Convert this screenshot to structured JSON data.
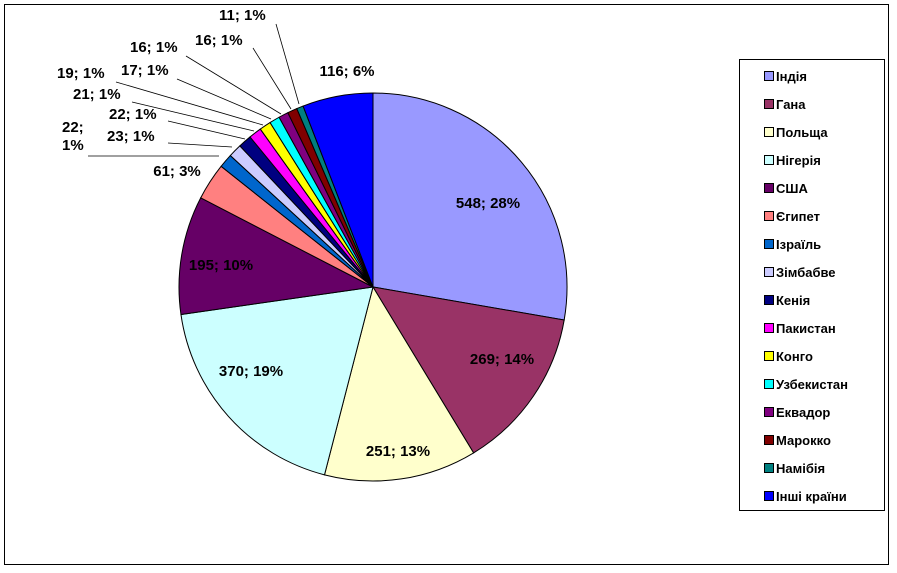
{
  "chart_data": {
    "type": "pie",
    "title": "",
    "slices": [
      {
        "name": "Індія",
        "value": 548,
        "label": "548; 28%",
        "color": "#9999ff"
      },
      {
        "name": "Гана",
        "value": 269,
        "label": "269; 14%",
        "color": "#993366"
      },
      {
        "name": "Польща",
        "value": 251,
        "label": "251; 13%",
        "color": "#ffffcc"
      },
      {
        "name": "Нігерія",
        "value": 370,
        "label": "370; 19%",
        "color": "#ccffff"
      },
      {
        "name": "США",
        "value": 195,
        "label": "195; 10%",
        "color": "#660066"
      },
      {
        "name": "Єгипет",
        "value": 61,
        "label": "61; 3%",
        "color": "#ff8080"
      },
      {
        "name": "Ізраїль",
        "value": 23,
        "label": "23; 1%",
        "color": "#0066cc"
      },
      {
        "name": "Зімбабве",
        "value": 22,
        "label": "22; 1%",
        "color": "#ccccff"
      },
      {
        "name": "Кенія",
        "value": 22,
        "label": "22; 1%",
        "color": "#000080"
      },
      {
        "name": "Пакистан",
        "value": 21,
        "label": "21; 1%",
        "color": "#ff00ff"
      },
      {
        "name": "Конго",
        "value": 19,
        "label": "19; 1%",
        "color": "#ffff00"
      },
      {
        "name": "Узбекистан",
        "value": 17,
        "label": "17; 1%",
        "color": "#00ffff"
      },
      {
        "name": "Еквадор",
        "value": 16,
        "label": "16; 1%",
        "color": "#800080"
      },
      {
        "name": "Марокко",
        "value": 16,
        "label": "16; 1%",
        "color": "#800000"
      },
      {
        "name": "Намібія",
        "value": 11,
        "label": "11; 1%",
        "color": "#008080"
      },
      {
        "name": "Інші країни",
        "value": 116,
        "label": "116; 6%",
        "color": "#0000ff"
      }
    ],
    "legend_position": "right"
  }
}
